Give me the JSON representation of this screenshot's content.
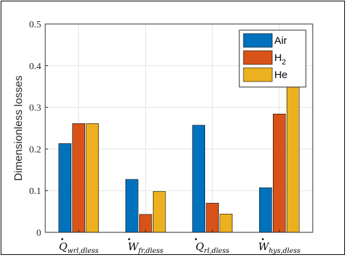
{
  "chart_data": {
    "type": "bar",
    "title": "",
    "xlabel": "",
    "ylabel": "Dimensionless losses",
    "ylim": [
      0,
      0.5
    ],
    "yticks": [
      "0",
      "0.1",
      "0.2",
      "0.3",
      "0.4",
      "0.5"
    ],
    "grid": true,
    "legend_position": "top-right",
    "categories": [
      {
        "main": "Q",
        "sub": "wrl,dless"
      },
      {
        "main": "W",
        "sub": "fr,dless"
      },
      {
        "main": "Q",
        "sub": "rl,dless"
      },
      {
        "main": "W",
        "sub": "hys,dless"
      }
    ],
    "series": [
      {
        "name": "Air",
        "color": "#0072BD",
        "values": [
          0.213,
          0.127,
          0.257,
          0.107
        ]
      },
      {
        "name": "H",
        "name_sub": "2",
        "color": "#D95319",
        "values": [
          0.261,
          0.043,
          0.07,
          0.284
        ]
      },
      {
        "name": "He",
        "color": "#EDB120",
        "values": [
          0.261,
          0.098,
          0.044,
          0.436
        ]
      }
    ]
  }
}
